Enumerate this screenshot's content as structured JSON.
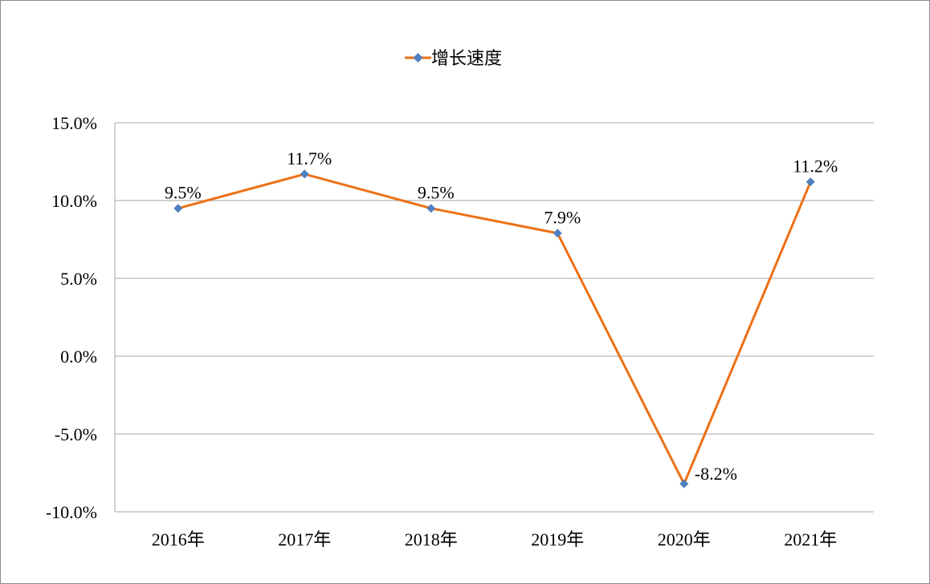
{
  "chart_data": {
    "type": "line",
    "categories": [
      "2016年",
      "2017年",
      "2018年",
      "2019年",
      "2020年",
      "2021年"
    ],
    "series": [
      {
        "name": "增长速度",
        "values": [
          9.5,
          11.7,
          9.5,
          7.9,
          -8.2,
          11.2
        ],
        "data_labels": [
          "9.5%",
          "11.7%",
          "9.5%",
          "7.9%",
          "-8.2%",
          "11.2%"
        ],
        "line_color": "#ed7016",
        "marker_color": "#4f7fbf",
        "marker": "diamond"
      }
    ],
    "yticks": [
      15,
      10,
      5,
      0,
      -5,
      -10
    ],
    "ytick_labels": [
      "15.0%",
      "10.0%",
      "5.0%",
      "0.0%",
      "-5.0%",
      "-10.0%"
    ],
    "ylim": [
      -10,
      15
    ],
    "grid": true,
    "legend_position": "top-center",
    "gridline_color": "#a6a6a6"
  }
}
